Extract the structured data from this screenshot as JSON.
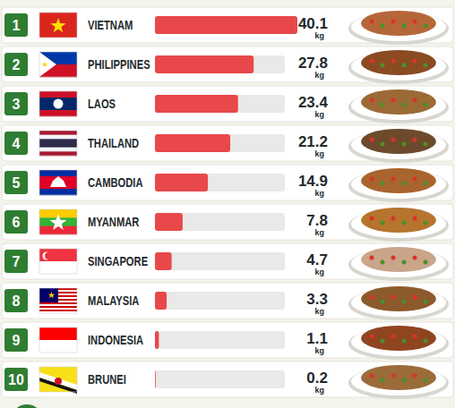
{
  "chart_data": {
    "type": "bar",
    "orientation": "horizontal",
    "ranks": [
      1,
      2,
      3,
      4,
      5,
      6,
      7,
      8,
      9,
      10
    ],
    "categories": [
      "VIETNAM",
      "PHILIPPINES",
      "LAOS",
      "THAILAND",
      "CAMBODIA",
      "MYANMAR",
      "SINGAPORE",
      "MALAYSIA",
      "INDONESIA",
      "BRUNEI"
    ],
    "values": [
      40.1,
      27.8,
      23.4,
      21.2,
      14.9,
      7.8,
      4.7,
      3.3,
      1.1,
      0.2
    ],
    "unit": "kg",
    "color": "#e8484a",
    "xlim": [
      0,
      40.1
    ],
    "data_labels": true,
    "tick_labels": false,
    "grid": false
  }
}
